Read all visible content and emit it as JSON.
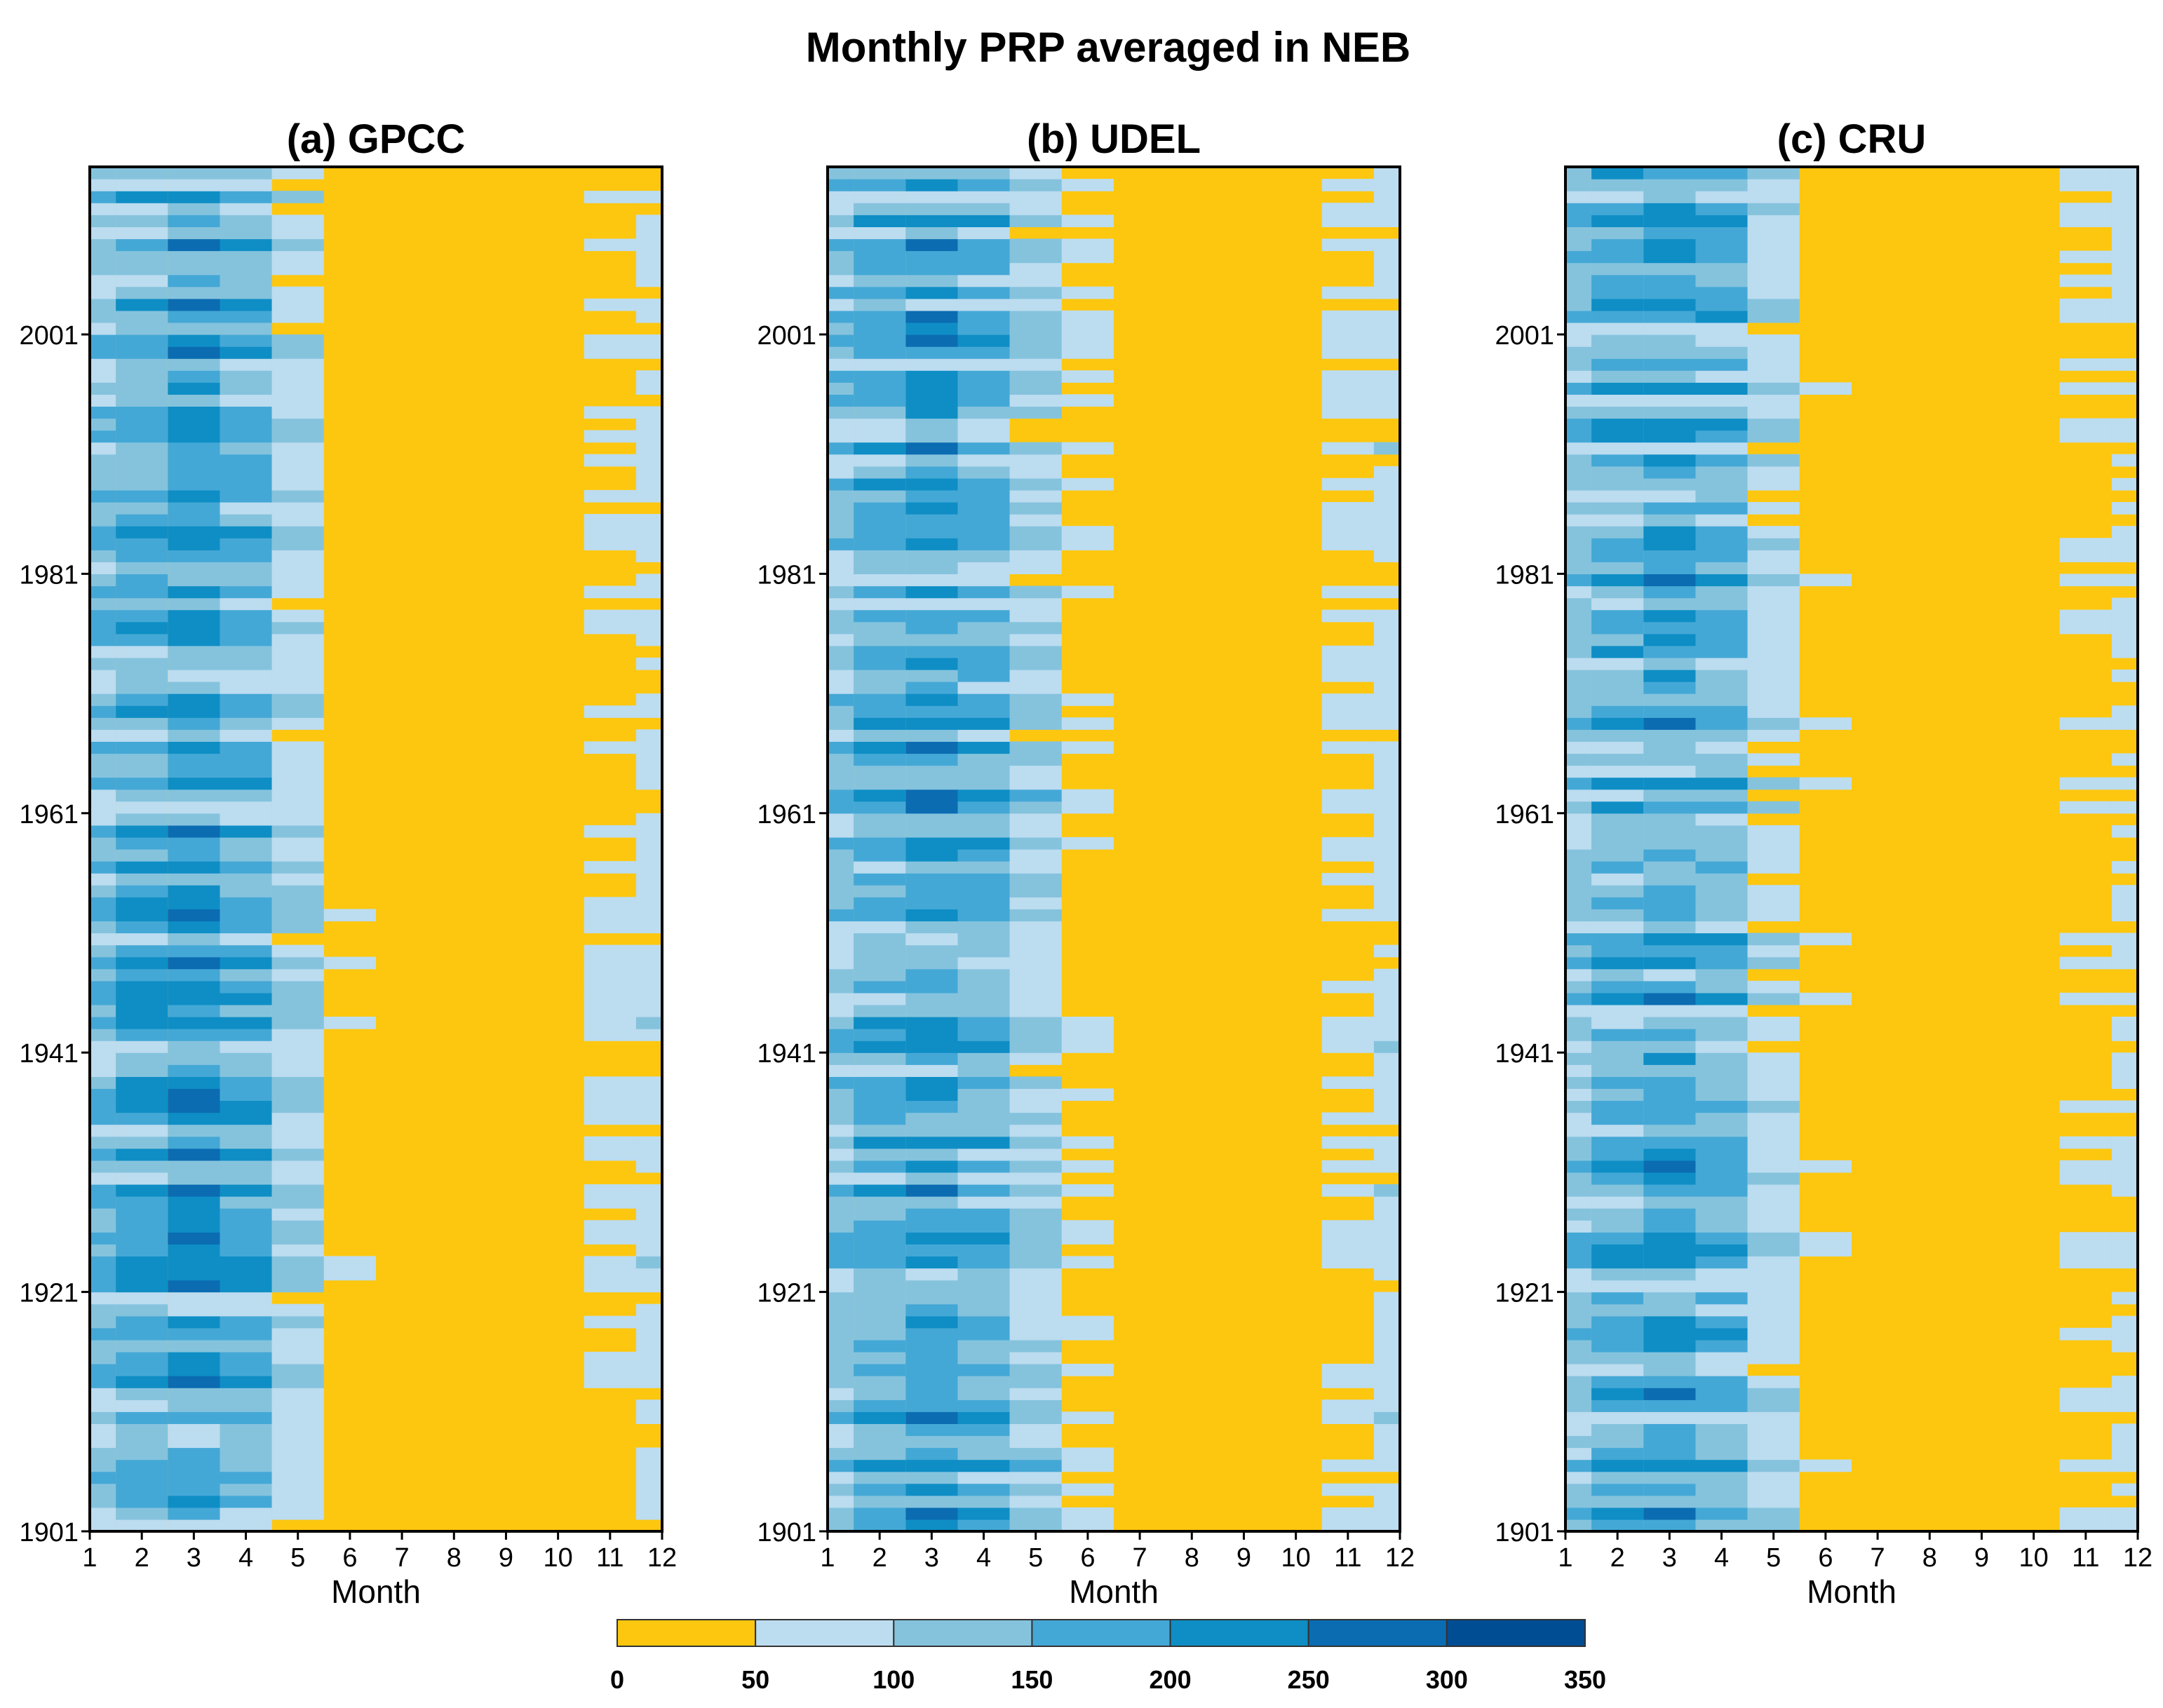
{
  "title": "Monthly PRP averaged in NEB",
  "chart_data": [
    {
      "type": "heatmap",
      "title": "(a) GPCC",
      "xlabel": "Month",
      "ylabel": "",
      "x_ticks": [
        "1",
        "2",
        "3",
        "4",
        "5",
        "6",
        "7",
        "8",
        "9",
        "10",
        "11",
        "12"
      ],
      "y_ticks": [
        "1901",
        "1921",
        "1941",
        "1961",
        "1981",
        "2001"
      ],
      "xlim": [
        1,
        12
      ],
      "ylim": [
        1901,
        2015
      ],
      "monthly_climatology_mm": [
        125,
        155,
        180,
        150,
        85,
        35,
        25,
        15,
        10,
        20,
        45,
        65
      ]
    },
    {
      "type": "heatmap",
      "title": "(b) UDEL",
      "xlabel": "Month",
      "ylabel": "",
      "x_ticks": [
        "1",
        "2",
        "3",
        "4",
        "5",
        "6",
        "7",
        "8",
        "9",
        "10",
        "11",
        "12"
      ],
      "y_ticks": [
        "1901",
        "1921",
        "1941",
        "1961",
        "1981",
        "2001"
      ],
      "xlim": [
        1,
        12
      ],
      "ylim": [
        1901,
        2015
      ],
      "monthly_climatology_mm": [
        120,
        150,
        175,
        150,
        95,
        45,
        30,
        20,
        12,
        22,
        50,
        70
      ]
    },
    {
      "type": "heatmap",
      "title": "(c) CRU",
      "xlabel": "Month",
      "ylabel": "",
      "x_ticks": [
        "1",
        "2",
        "3",
        "4",
        "5",
        "6",
        "7",
        "8",
        "9",
        "10",
        "11",
        "12"
      ],
      "y_ticks": [
        "1901",
        "1921",
        "1941",
        "1961",
        "1981",
        "2001"
      ],
      "xlim": [
        1,
        12
      ],
      "ylim": [
        1901,
        2015
      ],
      "monthly_climatology_mm": [
        120,
        150,
        175,
        145,
        80,
        35,
        25,
        15,
        10,
        25,
        45,
        60
      ]
    }
  ],
  "colorbar": {
    "labels": [
      "0",
      "50",
      "100",
      "150",
      "200",
      "250",
      "300",
      "350"
    ],
    "colors": [
      "#fdc70f",
      "#bcdcf0",
      "#85c3dd",
      "#44a8d6",
      "#0e8ec5",
      "#0b6cb2",
      "#004d94"
    ]
  }
}
